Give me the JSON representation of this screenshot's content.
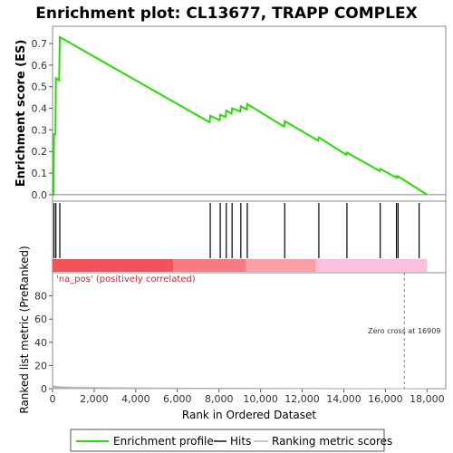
{
  "title": "Enrichment plot: CL13677, TRAPP COMPLEX",
  "colors": {
    "es_line": "#22e000",
    "hits": "#000000",
    "ranking": "#b0b0b0",
    "pos_dark": "#f0535a",
    "pos_mid": "#f77a82",
    "pos_light": "#fb9fa4",
    "neg_pink": "#fbbfe0",
    "zero_line": "#888888",
    "note_red": "#d9262e"
  },
  "chart_data": [
    {
      "type": "line",
      "name": "enrichment-profile",
      "ylabel": "Enrichment score (ES)",
      "ylim": [
        -0.03,
        0.78
      ],
      "xlim": [
        0,
        18900
      ],
      "yticks": [
        "0.0",
        "0.1",
        "0.2",
        "0.3",
        "0.4",
        "0.5",
        "0.6",
        "0.7"
      ],
      "ytick_values": [
        0.0,
        0.1,
        0.2,
        0.3,
        0.4,
        0.5,
        0.6,
        0.7
      ],
      "series": [
        {
          "name": "Enrichment profile",
          "x": [
            0,
            50,
            70,
            140,
            160,
            320,
            350,
            7550,
            7580,
            8030,
            8060,
            8320,
            8350,
            8600,
            8630,
            9020,
            9050,
            9330,
            9360,
            11130,
            11160,
            12770,
            12800,
            14120,
            14150,
            15720,
            15750,
            16500,
            16530,
            16580,
            16610,
            18000
          ],
          "y": [
            0.0,
            0.0,
            0.28,
            0.28,
            0.54,
            0.53,
            0.73,
            0.335,
            0.365,
            0.345,
            0.37,
            0.36,
            0.39,
            0.375,
            0.4,
            0.385,
            0.41,
            0.395,
            0.42,
            0.315,
            0.34,
            0.25,
            0.265,
            0.185,
            0.195,
            0.11,
            0.12,
            0.08,
            0.085,
            0.08,
            0.085,
            0.0
          ]
        }
      ]
    },
    {
      "type": "hits",
      "name": "hits",
      "hits_x": [
        70,
        160,
        350,
        7580,
        8060,
        8350,
        8630,
        9050,
        9360,
        11160,
        12800,
        14150,
        15750,
        16530,
        16610,
        17620
      ]
    },
    {
      "type": "area",
      "name": "ranking-metric",
      "xlabel": "Rank in Ordered Dataset",
      "ylabel": "Ranked list metric (PreRanked)",
      "ylim": [
        0,
        100
      ],
      "xlim": [
        0,
        18900
      ],
      "xticks": [
        "0",
        "2,000",
        "4,000",
        "6,000",
        "8,000",
        "10,000",
        "12,000",
        "14,000",
        "16,000",
        "18,000"
      ],
      "xtick_values": [
        0,
        2000,
        4000,
        6000,
        8000,
        10000,
        12000,
        14000,
        16000,
        18000
      ],
      "yticks": [
        "0",
        "20",
        "40",
        "60",
        "80"
      ],
      "ytick_values": [
        0,
        20,
        40,
        60,
        80
      ],
      "series": [
        {
          "name": "Ranking metric scores",
          "x": [
            0,
            100,
            300,
            600,
            1000,
            2000,
            4000,
            6000,
            8000,
            10000,
            12000,
            14000,
            16000,
            16909,
            17500,
            18000
          ],
          "y": [
            3,
            2.2,
            1.8,
            1.5,
            1.2,
            0.9,
            0.7,
            0.5,
            0.4,
            0.3,
            0.2,
            0.1,
            0.05,
            0,
            -0.1,
            -0.2
          ]
        }
      ],
      "zero_cross": 16909,
      "zero_cross_label": "Zero cross at 16909",
      "pos_label": "'na_pos' (positively correlated)"
    }
  ],
  "heatbar": {
    "segments": [
      {
        "from": 0,
        "to": 5800,
        "color": "#f0535a"
      },
      {
        "from": 5800,
        "to": 9300,
        "color": "#f77a82"
      },
      {
        "from": 9300,
        "to": 12650,
        "color": "#fb9fa4"
      },
      {
        "from": 12650,
        "to": 18000,
        "color": "#fbbfe0"
      }
    ]
  },
  "legend": {
    "items": [
      {
        "label": "Enrichment profile",
        "kind": "es"
      },
      {
        "label": "Hits",
        "kind": "hits"
      },
      {
        "label": "Ranking metric scores",
        "kind": "ranking"
      }
    ]
  }
}
